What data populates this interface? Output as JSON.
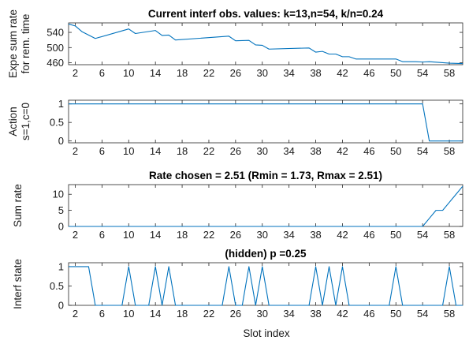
{
  "figure": {
    "xlabel": "Slot index"
  },
  "chart_data": [
    {
      "type": "line",
      "title": "Current interf obs. values: k=13,n=54, k/n=0.24",
      "ylabel_lines": [
        "Expe sum rate",
        "for rem. time"
      ],
      "xlim": [
        1,
        60
      ],
      "ylim": [
        455,
        565
      ],
      "xticks": [
        2,
        6,
        10,
        14,
        18,
        22,
        26,
        30,
        34,
        38,
        42,
        46,
        50,
        54,
        58
      ],
      "yticks": [
        460,
        500,
        540
      ],
      "color": "#0072BD",
      "series": [
        {
          "x": [
            1,
            2,
            3,
            5,
            10,
            11,
            14,
            15,
            16,
            17,
            25,
            26,
            28,
            29,
            30,
            31,
            37,
            38,
            39,
            40,
            41,
            42,
            43,
            44,
            50,
            51,
            53,
            54,
            55,
            58,
            60
          ],
          "values": [
            562,
            557,
            542,
            524,
            549,
            537,
            545,
            532,
            533,
            520,
            530,
            518,
            519,
            507,
            506,
            496,
            499,
            488,
            490,
            483,
            483,
            476,
            476,
            470,
            470,
            463,
            463,
            462,
            463,
            459,
            458
          ]
        }
      ]
    },
    {
      "type": "line",
      "title": "",
      "ylabel_lines": [
        "Action",
        "s=1,c=0"
      ],
      "xlim": [
        1,
        60
      ],
      "ylim": [
        -0.05,
        1.1
      ],
      "xticks": [
        2,
        6,
        10,
        14,
        18,
        22,
        26,
        30,
        34,
        38,
        42,
        46,
        50,
        54,
        58
      ],
      "yticks": [
        0,
        0.5,
        1
      ],
      "color": "#0072BD",
      "series": [
        {
          "x": [
            1,
            54,
            55,
            60
          ],
          "values": [
            1,
            1,
            0,
            0
          ]
        }
      ]
    },
    {
      "type": "line",
      "title": "Rate chosen = 2.51 (Rmin = 1.73, Rmax = 2.51)",
      "ylabel_lines": [
        "Sum rate"
      ],
      "xlim": [
        1,
        60
      ],
      "ylim": [
        0,
        13
      ],
      "xticks": [
        2,
        6,
        10,
        14,
        18,
        22,
        26,
        30,
        34,
        38,
        42,
        46,
        50,
        54,
        58
      ],
      "yticks": [
        0,
        5,
        10
      ],
      "color": "#0072BD",
      "series": [
        {
          "x": [
            1,
            54,
            55,
            56,
            57,
            58,
            59,
            60
          ],
          "values": [
            0,
            0,
            2.5,
            5,
            5,
            7.5,
            10,
            12.5
          ]
        }
      ]
    },
    {
      "type": "line",
      "title": "(hidden) p =0.25",
      "ylabel_lines": [
        "Interf state"
      ],
      "xlim": [
        1,
        60
      ],
      "ylim": [
        0,
        1.1
      ],
      "xticks": [
        2,
        6,
        10,
        14,
        18,
        22,
        26,
        30,
        34,
        38,
        42,
        46,
        50,
        54,
        58
      ],
      "yticks": [
        0,
        0.5,
        1
      ],
      "color": "#0072BD",
      "series": [
        {
          "x": [
            1,
            2,
            3,
            4,
            5,
            6,
            7,
            8,
            9,
            10,
            11,
            12,
            13,
            14,
            15,
            16,
            17,
            18,
            19,
            20,
            21,
            22,
            23,
            24,
            25,
            26,
            27,
            28,
            29,
            30,
            31,
            32,
            33,
            34,
            35,
            36,
            37,
            38,
            39,
            40,
            41,
            42,
            43,
            44,
            45,
            46,
            47,
            48,
            49,
            50,
            51,
            52,
            53,
            54,
            55,
            56,
            57,
            58,
            59,
            60
          ],
          "values": [
            1,
            1,
            1,
            1,
            0,
            0,
            0,
            0,
            0,
            1,
            0,
            0,
            0,
            1,
            0,
            1,
            0,
            0,
            0,
            0,
            0,
            0,
            0,
            0,
            1,
            0,
            0,
            1,
            0,
            1,
            0,
            0,
            0,
            0,
            0,
            0,
            0,
            1,
            0,
            1,
            0,
            1,
            0,
            0,
            0,
            0,
            0,
            0,
            0,
            1,
            0,
            0,
            0,
            0,
            0,
            0,
            0,
            1,
            0,
            0
          ]
        }
      ]
    }
  ]
}
